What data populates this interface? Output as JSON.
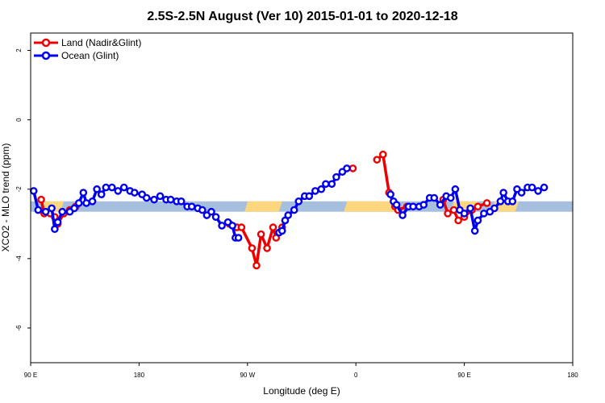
{
  "chart_data": {
    "type": "line",
    "title": "2.5S-2.5N August (Ver 10)   2015-01-01 to 2020-12-18",
    "xlabel": "Longitude (deg E)",
    "ylabel": "XCO2 - MLO trend (ppm)",
    "xlim": [
      90,
      450
    ],
    "ylim": [
      -7,
      2.5
    ],
    "x_ticks": [
      {
        "value": 90,
        "label": "90 E"
      },
      {
        "value": 162,
        "label": "180"
      },
      {
        "value": 234,
        "label": "90 W"
      },
      {
        "value": 306,
        "label": "0"
      },
      {
        "value": 378,
        "label": "90 E"
      },
      {
        "value": 450,
        "label": "180"
      }
    ],
    "y_ticks": [
      {
        "value": 2,
        "label": "2"
      },
      {
        "value": 0,
        "label": "0"
      },
      {
        "value": -2,
        "label": "-2"
      },
      {
        "value": -4,
        "label": "-4"
      },
      {
        "value": -6,
        "label": "-6"
      }
    ],
    "legend": {
      "placement": "top-left"
    },
    "band": {
      "y_min": -2.65,
      "y_max": -2.35,
      "color": "#a7bfdf",
      "highlight_color": "#fcd77f",
      "highlight_ranges": [
        [
          97,
          112
        ],
        [
          232,
          257
        ],
        [
          298,
          334
        ],
        [
          369,
          387
        ],
        [
          396,
          414
        ]
      ]
    },
    "series": [
      {
        "name": "Land (Nadir&Glint)",
        "color": "#ee0000",
        "segments": [
          [
            [
              97,
              -2.3
            ],
            [
              99,
              -2.7
            ],
            [
              103,
              -2.7
            ],
            [
              106,
              -2.8
            ],
            [
              108,
              -3.0
            ],
            [
              112,
              -2.7
            ],
            [
              116,
              -2.6
            ],
            [
              120,
              -2.5
            ]
          ],
          [
            [
              222,
              -3.0
            ],
            [
              227,
              -3.1
            ],
            [
              230,
              -3.1
            ],
            [
              237,
              -3.7
            ],
            [
              240,
              -4.2
            ],
            [
              243,
              -3.3
            ],
            [
              247,
              -3.7
            ],
            [
              251,
              -3.1
            ],
            [
              253,
              -3.4
            ],
            [
              257,
              -3.1
            ],
            [
              259,
              -2.9
            ]
          ],
          [
            [
              304,
              -1.4
            ]
          ],
          [
            [
              320,
              -1.15
            ],
            [
              324,
              -1.0
            ],
            [
              328,
              -2.1
            ],
            [
              332,
              -2.5
            ],
            [
              334,
              -2.6
            ],
            [
              340,
              -2.5
            ]
          ],
          [
            [
              364,
              -2.3
            ],
            [
              367,
              -2.7
            ],
            [
              371,
              -2.6
            ],
            [
              374,
              -2.9
            ],
            [
              378,
              -2.8
            ],
            [
              383,
              -2.6
            ],
            [
              387,
              -2.5
            ],
            [
              393,
              -2.4
            ]
          ]
        ]
      },
      {
        "name": "Ocean (Glint)",
        "color": "#0000ee",
        "segments": [
          [
            [
              92,
              -2.05
            ],
            [
              95,
              -2.6
            ],
            [
              100,
              -2.65
            ],
            [
              104,
              -2.55
            ],
            [
              106,
              -3.15
            ],
            [
              108,
              -2.95
            ],
            [
              111,
              -2.65
            ],
            [
              116,
              -2.65
            ],
            [
              119,
              -2.55
            ],
            [
              122,
              -2.4
            ],
            [
              125,
              -2.1
            ],
            [
              127,
              -2.4
            ],
            [
              131,
              -2.35
            ],
            [
              134,
              -2.0
            ],
            [
              137,
              -2.15
            ],
            [
              140,
              -1.95
            ],
            [
              144,
              -1.95
            ],
            [
              148,
              -2.05
            ],
            [
              152,
              -1.95
            ],
            [
              156,
              -2.05
            ],
            [
              159,
              -2.1
            ],
            [
              164,
              -2.15
            ],
            [
              167,
              -2.25
            ],
            [
              172,
              -2.3
            ],
            [
              176,
              -2.2
            ],
            [
              180,
              -2.3
            ],
            [
              183,
              -2.3
            ],
            [
              187,
              -2.35
            ],
            [
              190,
              -2.35
            ],
            [
              194,
              -2.5
            ],
            [
              197,
              -2.5
            ],
            [
              201,
              -2.55
            ],
            [
              204,
              -2.6
            ],
            [
              207,
              -2.75
            ],
            [
              210,
              -2.65
            ],
            [
              213,
              -2.8
            ],
            [
              217,
              -3.05
            ],
            [
              221,
              -2.95
            ],
            [
              224,
              -3.05
            ],
            [
              226,
              -3.4
            ],
            [
              228,
              -3.4
            ]
          ],
          [
            [
              255,
              -3.25
            ],
            [
              257,
              -3.2
            ],
            [
              259,
              -2.9
            ],
            [
              261,
              -2.75
            ],
            [
              265,
              -2.6
            ],
            [
              268,
              -2.35
            ],
            [
              272,
              -2.2
            ],
            [
              275,
              -2.2
            ],
            [
              279,
              -2.05
            ],
            [
              283,
              -2.0
            ],
            [
              286,
              -1.85
            ],
            [
              290,
              -1.85
            ],
            [
              293,
              -1.65
            ],
            [
              297,
              -1.5
            ],
            [
              300,
              -1.4
            ]
          ],
          [
            [
              329,
              -2.15
            ],
            [
              331,
              -2.35
            ],
            [
              333,
              -2.45
            ],
            [
              337,
              -2.75
            ],
            [
              341,
              -2.5
            ],
            [
              344,
              -2.5
            ],
            [
              348,
              -2.5
            ],
            [
              351,
              -2.45
            ],
            [
              355,
              -2.25
            ],
            [
              358,
              -2.25
            ],
            [
              362,
              -2.45
            ],
            [
              366,
              -2.2
            ],
            [
              369,
              -2.25
            ],
            [
              372,
              -2.0
            ],
            [
              375,
              -2.6
            ],
            [
              378,
              -2.7
            ],
            [
              382,
              -2.55
            ],
            [
              385,
              -3.2
            ],
            [
              387,
              -2.9
            ],
            [
              391,
              -2.7
            ],
            [
              395,
              -2.65
            ],
            [
              398,
              -2.55
            ],
            [
              402,
              -2.35
            ],
            [
              404,
              -2.1
            ],
            [
              407,
              -2.35
            ],
            [
              410,
              -2.35
            ],
            [
              413,
              -2.0
            ],
            [
              416,
              -2.1
            ],
            [
              420,
              -1.95
            ],
            [
              423,
              -1.95
            ],
            [
              427,
              -2.05
            ],
            [
              431,
              -1.95
            ]
          ]
        ]
      }
    ]
  }
}
